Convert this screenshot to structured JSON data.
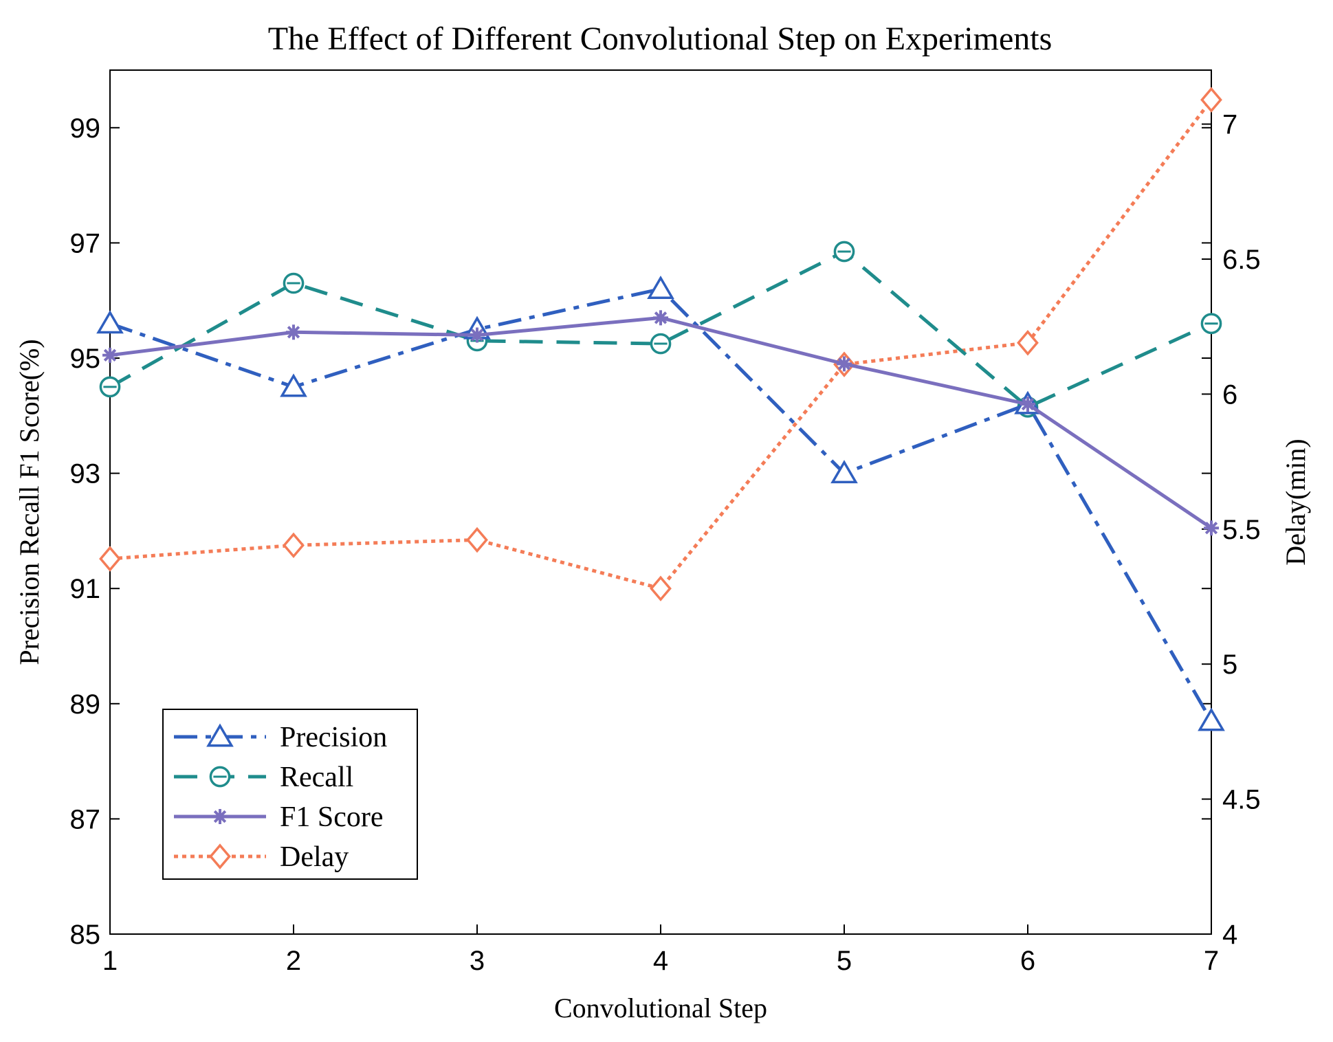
{
  "chart_data": {
    "type": "line",
    "title": "The Effect of Different Convolutional Step on Experiments",
    "xlabel": "Convolutional Step",
    "ylabel_left": "Precision  Recall  F1 Score(%)",
    "ylabel_right": "Delay(min)",
    "x": [
      1,
      2,
      3,
      4,
      5,
      6,
      7
    ],
    "xlim": [
      1,
      7
    ],
    "ylim_left": [
      85,
      100
    ],
    "ylim_right": [
      4,
      7.2
    ],
    "xticks": [
      "1",
      "2",
      "3",
      "4",
      "5",
      "6",
      "7"
    ],
    "yticks_left": [
      "85",
      "87",
      "89",
      "91",
      "93",
      "95",
      "97",
      "99"
    ],
    "yticks_right": [
      "4",
      "4.5",
      "5",
      "5.5",
      "6",
      "6.5",
      "7"
    ],
    "grid": false,
    "legend_position": "bottom-left",
    "series": [
      {
        "name": "Precision",
        "axis": "left",
        "values": [
          95.6,
          94.5,
          95.5,
          96.2,
          93.0,
          94.2,
          88.7
        ],
        "color": "#2f5fbf",
        "marker": "triangle",
        "dash": "dashdot"
      },
      {
        "name": "Recall",
        "axis": "left",
        "values": [
          94.5,
          96.3,
          95.3,
          95.25,
          96.85,
          94.15,
          95.6
        ],
        "color": "#1f8c8c",
        "marker": "circle",
        "dash": "dashed"
      },
      {
        "name": "F1 Score",
        "axis": "left",
        "values": [
          95.05,
          95.45,
          95.4,
          95.7,
          94.9,
          94.2,
          92.05
        ],
        "color": "#7a6fbe",
        "marker": "star",
        "dash": "solid"
      },
      {
        "name": "Delay",
        "axis": "right",
        "values": [
          5.39,
          5.44,
          5.46,
          5.28,
          6.11,
          6.19,
          7.09
        ],
        "color": "#f47c57",
        "marker": "diamond",
        "dash": "dotted"
      }
    ]
  }
}
